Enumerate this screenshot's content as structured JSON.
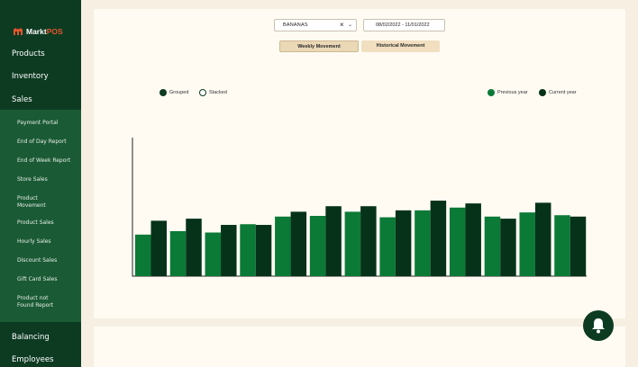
{
  "brand": {
    "name_main": "Markt",
    "name_accent": "POS"
  },
  "sidebar": {
    "top_items": [
      "Products",
      "Inventory",
      "Sales"
    ],
    "sub_items": [
      "Payment Portal",
      "End of Day Report",
      "End of Week Report",
      "Store Sales",
      "Product Movement",
      "Product Sales",
      "Hourly Sales",
      "Discount Sales",
      "Gift Card Sales",
      "Product not Found Report"
    ],
    "bottom_items": [
      "Balancing",
      "Employees"
    ]
  },
  "filters": {
    "product_value": "BANANAS",
    "clear_glyph": "×",
    "chevron_glyph": "⌄",
    "date_range": "08/02/2022 - 11/01/2022"
  },
  "tabs": {
    "weekly": "Weekly Movement",
    "historical": "Historical Movement"
  },
  "mode_options": {
    "grouped": "Grouped",
    "stacked": "Stacked"
  },
  "legend": {
    "previous": "Previous year",
    "current": "Current year"
  },
  "colors": {
    "previous": "#0b7a37",
    "current": "#063219",
    "sidebar": "#0d3b22",
    "subpanel": "#1a5a34",
    "accent": "#e8552d"
  },
  "chart_data": {
    "type": "bar",
    "grouping": "grouped",
    "categories": [
      "",
      "",
      "",
      "",
      "",
      "",
      "",
      "",
      "",
      "",
      "",
      "",
      ""
    ],
    "series": [
      {
        "name": "Previous year",
        "values": [
          30,
          32.5,
          31.5,
          37.5,
          43,
          43.5,
          46.5,
          42.5,
          47.5,
          49.5,
          43,
          46,
          44
        ]
      },
      {
        "name": "Current year",
        "values": [
          40,
          41.5,
          37,
          37,
          46.5,
          50.5,
          50.5,
          47.5,
          54.5,
          52.5,
          41.5,
          53,
          43
        ]
      }
    ],
    "ylim": [
      0,
      100
    ],
    "grid": false,
    "legend_position": "top-right"
  },
  "icons": {
    "bell": "bell-icon",
    "logo": "logo-icon"
  }
}
